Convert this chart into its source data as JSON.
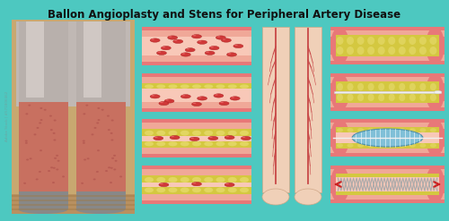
{
  "title": "Ballon Angioplasty and Stens for Peripheral Artery Disease",
  "bg_color": "#4DC8C0",
  "title_color": "#111111",
  "title_fontsize": 8.5,
  "fig_width": 5.0,
  "fig_height": 2.47,
  "colors": {
    "artery_wall_outer": "#E87878",
    "artery_wall_inner": "#F0A898",
    "lumen_pink": "#F8C8B8",
    "plaque_yellow": "#D4C840",
    "plaque_light": "#E8DC70",
    "rbc_red": "#D03838",
    "rbc_dark": "#A82020",
    "skin_light": "#F0D0B8",
    "skin_mid": "#E0B090",
    "skin_dark": "#C09070",
    "leg_upper_gray": "#C0B8B0",
    "leg_lower_red": "#C87868",
    "leg_floor": "#C8A870",
    "foot_gray": "#909090",
    "stent_gray": "#AAAAAA",
    "balloon_blue": "#80C0D8",
    "balloon_white": "#E8F4F8",
    "wire_white": "#F0F0F0",
    "arrow_red": "#CC2020"
  }
}
